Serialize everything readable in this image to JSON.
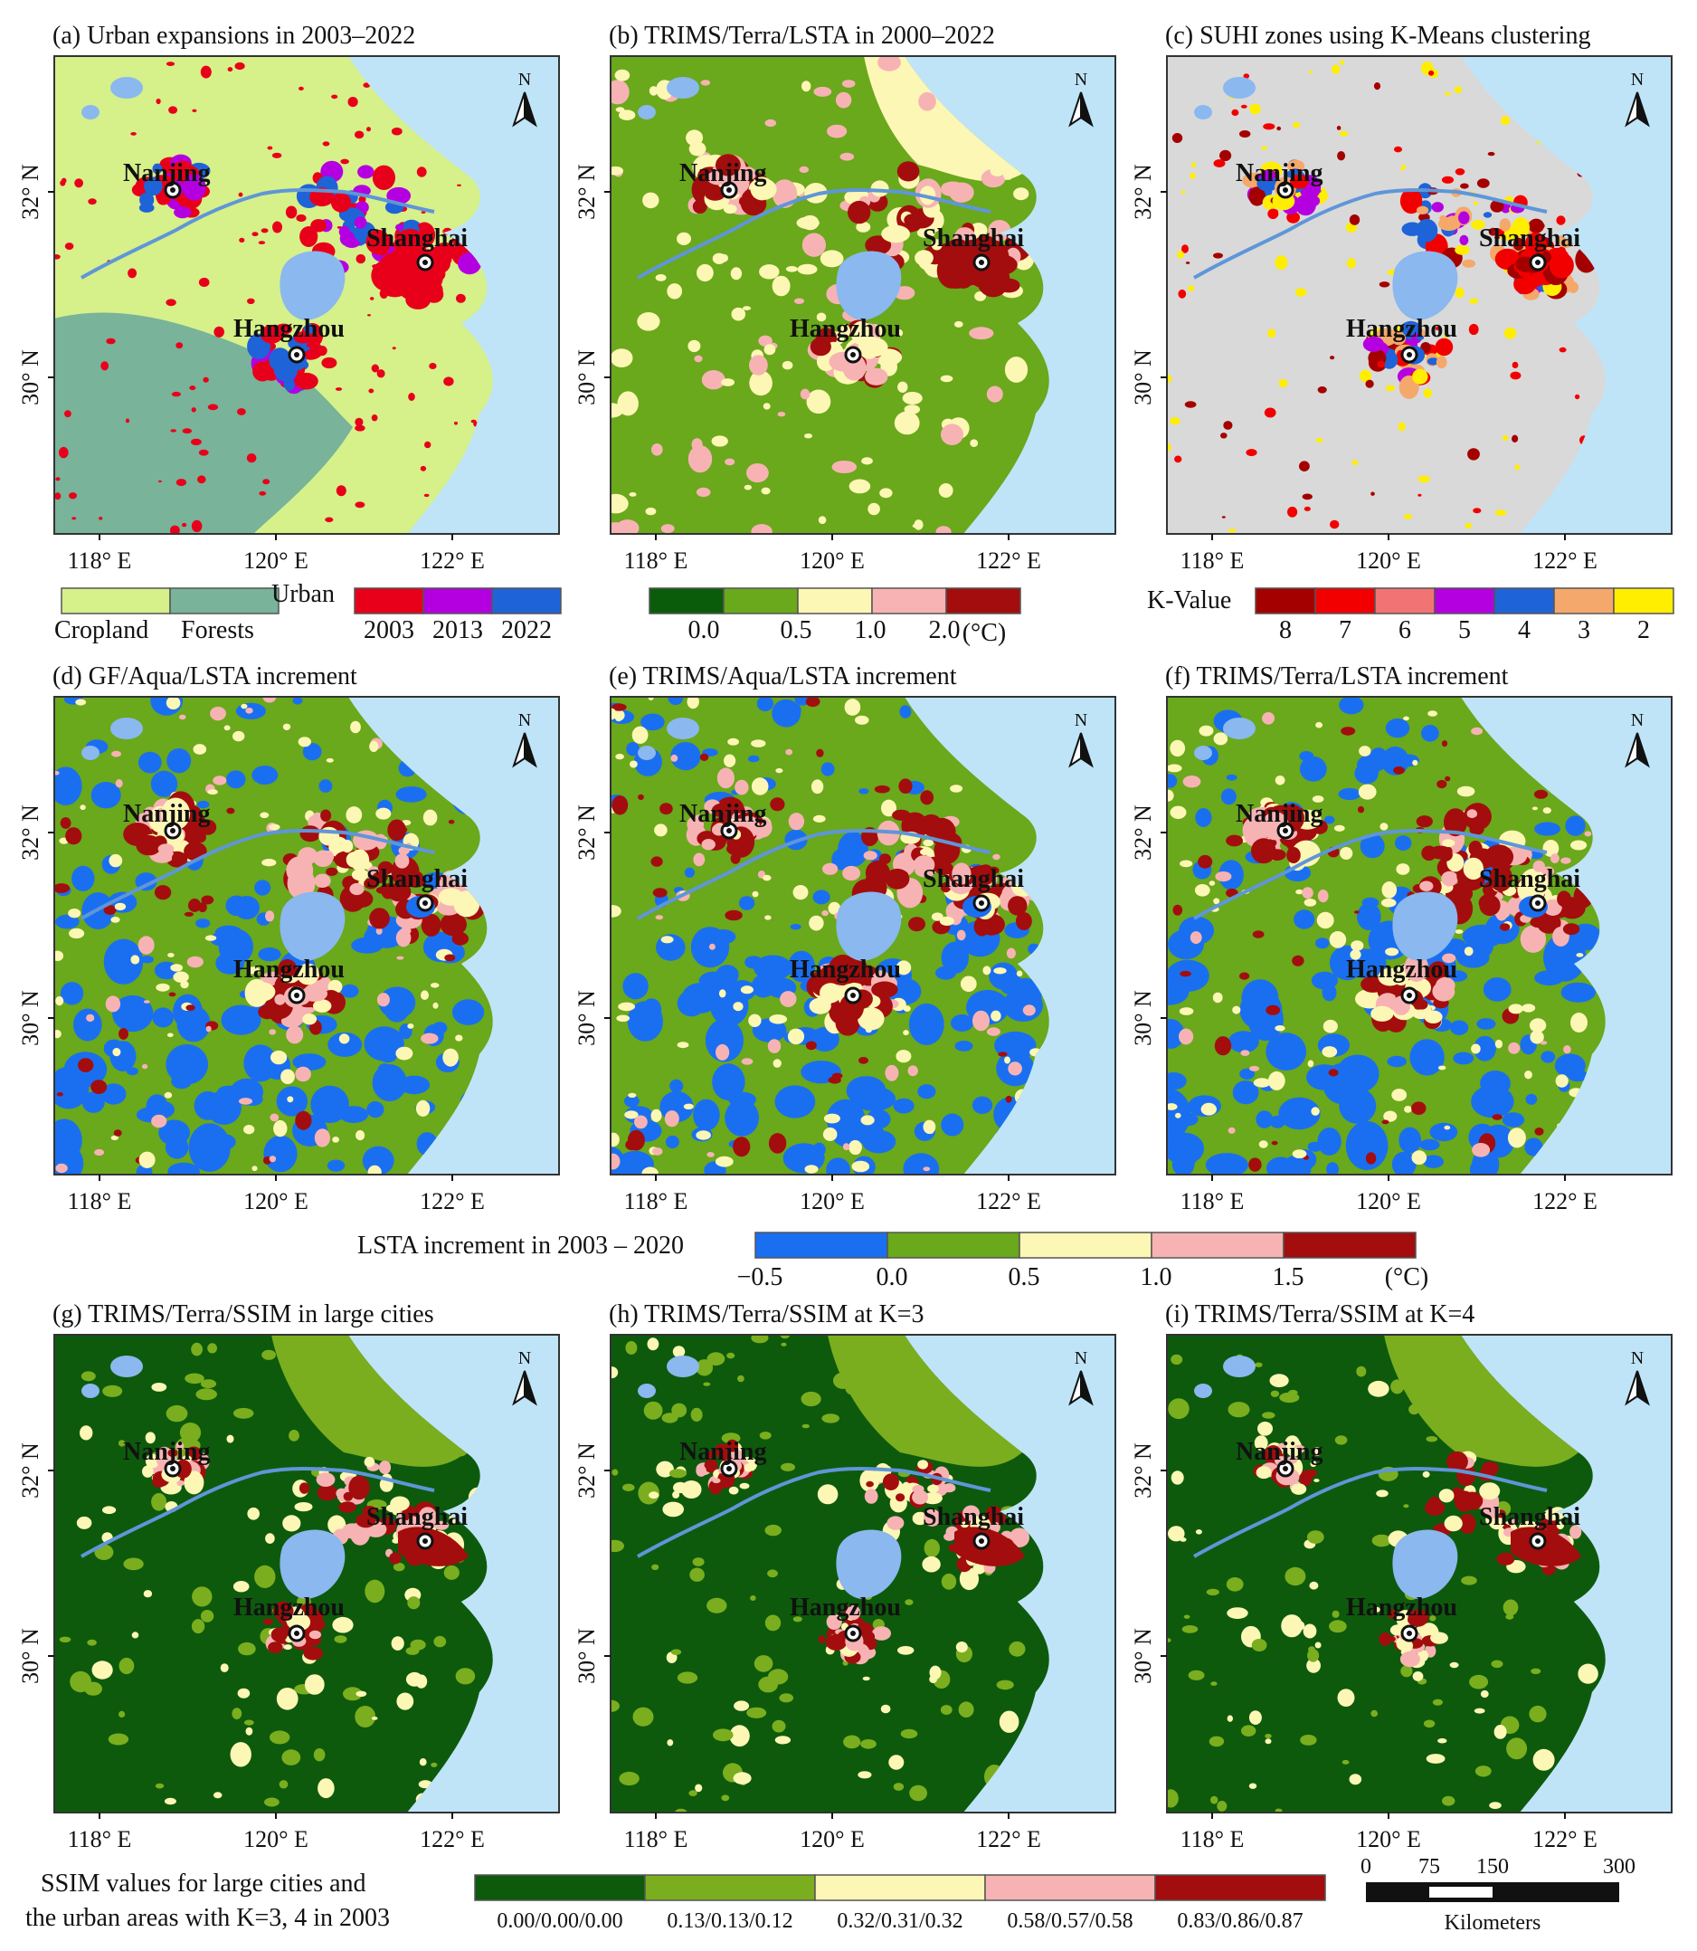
{
  "panels": [
    {
      "id": "a",
      "title": "(a) Urban expansions in 2003–2022",
      "kind": "urban"
    },
    {
      "id": "b",
      "title": "(b) TRIMS/Terra/LSTA in 2000–2022",
      "kind": "lsta"
    },
    {
      "id": "c",
      "title": "(c) SUHI zones using K-Means clustering",
      "kind": "kmeans"
    },
    {
      "id": "d",
      "title": "(d) GF/Aqua/LSTA increment",
      "kind": "incr"
    },
    {
      "id": "e",
      "title": "(e) TRIMS/Aqua/LSTA increment",
      "kind": "incr"
    },
    {
      "id": "f",
      "title": "(f) TRIMS/Terra/LSTA increment",
      "kind": "incr"
    },
    {
      "id": "g",
      "title": "(g) TRIMS/Terra/SSIM in large cities",
      "kind": "ssim"
    },
    {
      "id": "h",
      "title": "(h) TRIMS/Terra/SSIM at K=3",
      "kind": "ssim"
    },
    {
      "id": "i",
      "title": "(i) TRIMS/Terra/SSIM at K=4",
      "kind": "ssim"
    }
  ],
  "cities": [
    "Nanjing",
    "Shanghai",
    "Hangzhou"
  ],
  "lon_ticks": [
    "118° E",
    "120° E",
    "122° E"
  ],
  "lat_ticks": [
    "32° N",
    "30° N"
  ],
  "north_label": "N",
  "legend_a": {
    "landcover": [
      "Cropland",
      "Forests"
    ],
    "landcover_colors": [
      "#d6f08a",
      "#78b39a"
    ],
    "urban_label": "Urban",
    "urban_years": [
      "2003",
      "2013",
      "2022"
    ],
    "urban_colors": [
      "#e8001a",
      "#b400e0",
      "#1f63d8"
    ]
  },
  "legend_b": {
    "colors": [
      "#0a5c0a",
      "#6aa81c",
      "#fdf7b5",
      "#f7b3b3",
      "#a30d0d"
    ],
    "labels": [
      "0.0",
      "0.5",
      "1.0",
      "2.0",
      "(°C)"
    ]
  },
  "legend_c": {
    "title": "K-Value",
    "colors": [
      "#a40000",
      "#f20000",
      "#f27373",
      "#b400e0",
      "#1f63d8",
      "#f5a86b",
      "#ffee00"
    ],
    "labels": [
      "8",
      "7",
      "6",
      "5",
      "4",
      "3",
      "2"
    ]
  },
  "legend_incr": {
    "title": "LSTA increment in 2003 – 2020",
    "colors": [
      "#1a6ff0",
      "#6aa81c",
      "#fdf7b5",
      "#f7b3b3",
      "#a30d0d"
    ],
    "labels": [
      "−0.5",
      "0.0",
      "0.5",
      "1.0",
      "1.5",
      "(°C)"
    ]
  },
  "legend_ssim": {
    "title_line1": "SSIM values  for large cities and",
    "title_line2": "the urban areas with K=3, 4 in 2003",
    "colors": [
      "#0d5a0d",
      "#7aae1e",
      "#fdf7b5",
      "#f7b3b3",
      "#a30d0d"
    ],
    "labels": [
      "0.00/0.00/0.00",
      "0.13/0.13/0.12",
      "0.32/0.31/0.32",
      "0.58/0.57/0.58",
      "0.83/0.86/0.87"
    ]
  },
  "scalebar": {
    "ticks": [
      "0",
      "75",
      "150",
      "300"
    ],
    "unit": "Kilometers"
  },
  "colors": {
    "sea": "#bfe4f7",
    "lake": "#8ab8ef",
    "river": "#5f96d8",
    "urban_grey": "#d9d9d9",
    "frame": "#333333"
  }
}
